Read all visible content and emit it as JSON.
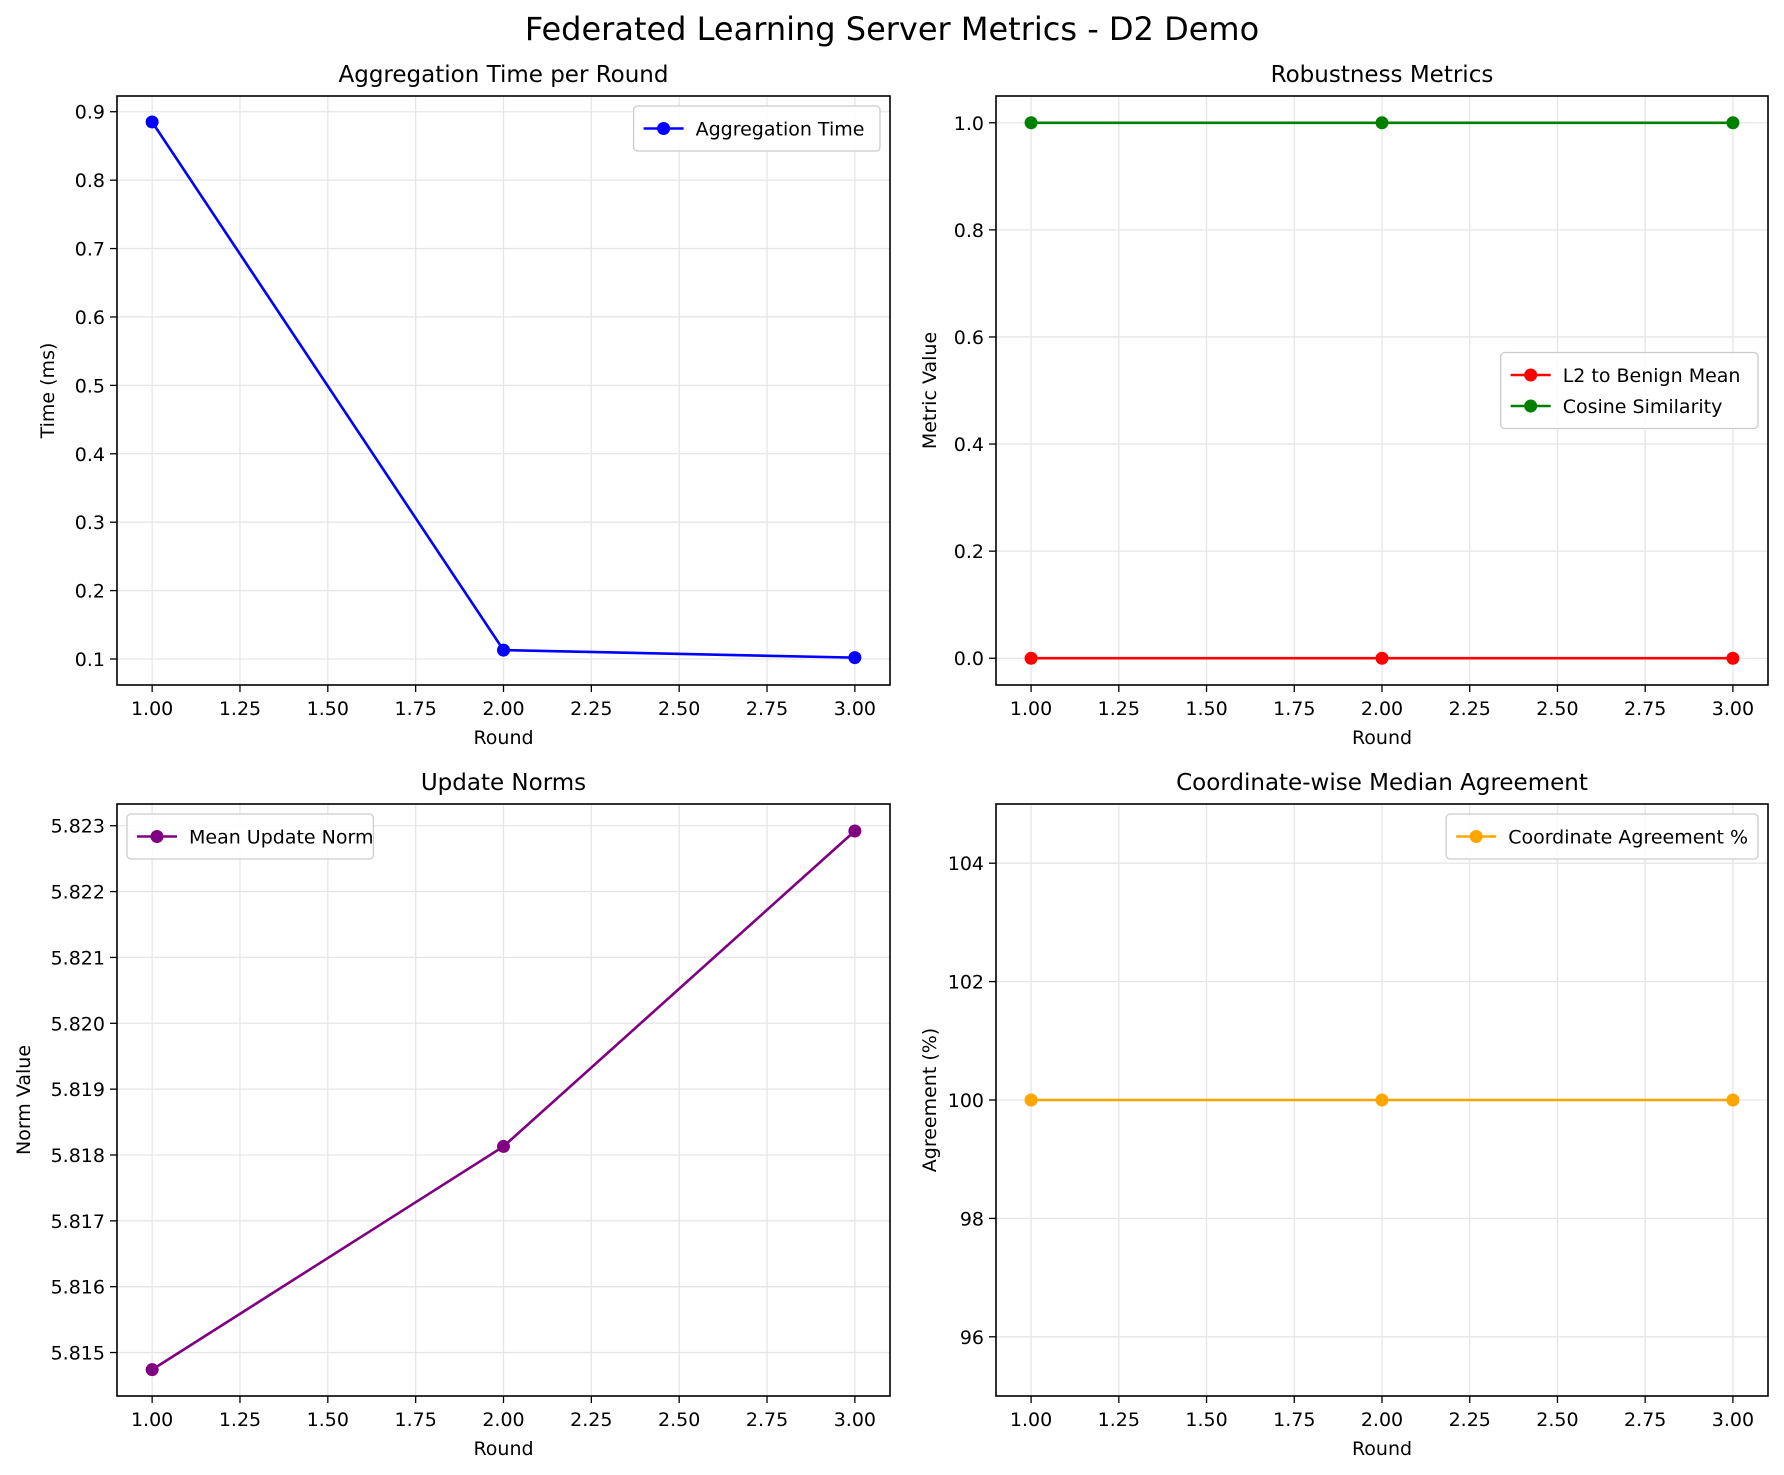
{
  "figure": {
    "title": "Federated Learning Server Metrics - D2 Demo"
  },
  "chart_data": [
    {
      "type": "line",
      "title": "Aggregation Time per Round",
      "xlabel": "Round",
      "ylabel": "Time (ms)",
      "xlim": [
        0.9,
        3.1
      ],
      "ylim": [
        0.062,
        0.923
      ],
      "xticks": [
        1.0,
        1.25,
        1.5,
        1.75,
        2.0,
        2.25,
        2.5,
        2.75,
        3.0
      ],
      "xtick_labels": [
        "1.00",
        "1.25",
        "1.50",
        "1.75",
        "2.00",
        "2.25",
        "2.50",
        "2.75",
        "3.00"
      ],
      "yticks": [
        0.1,
        0.2,
        0.3,
        0.4,
        0.5,
        0.6,
        0.7,
        0.8,
        0.9
      ],
      "ytick_labels": [
        "0.1",
        "0.2",
        "0.3",
        "0.4",
        "0.5",
        "0.6",
        "0.7",
        "0.8",
        "0.9"
      ],
      "grid": true,
      "legend_position": "upper-right",
      "x": [
        1,
        2,
        3
      ],
      "series": [
        {
          "name": "Aggregation Time",
          "color": "#0000ff",
          "values": [
            0.885,
            0.113,
            0.102
          ]
        }
      ]
    },
    {
      "type": "line",
      "title": "Robustness Metrics",
      "xlabel": "Round",
      "ylabel": "Metric Value",
      "xlim": [
        0.9,
        3.1
      ],
      "ylim": [
        -0.05,
        1.05
      ],
      "xticks": [
        1.0,
        1.25,
        1.5,
        1.75,
        2.0,
        2.25,
        2.5,
        2.75,
        3.0
      ],
      "xtick_labels": [
        "1.00",
        "1.25",
        "1.50",
        "1.75",
        "2.00",
        "2.25",
        "2.50",
        "2.75",
        "3.00"
      ],
      "yticks": [
        0.0,
        0.2,
        0.4,
        0.6,
        0.8,
        1.0
      ],
      "ytick_labels": [
        "0.0",
        "0.2",
        "0.4",
        "0.6",
        "0.8",
        "1.0"
      ],
      "grid": true,
      "legend_position": "center-right",
      "x": [
        1,
        2,
        3
      ],
      "series": [
        {
          "name": "L2 to Benign Mean",
          "color": "#ff0000",
          "values": [
            0.0,
            0.0,
            0.0
          ]
        },
        {
          "name": "Cosine Similarity",
          "color": "#008000",
          "values": [
            1.0,
            1.0,
            1.0
          ]
        }
      ]
    },
    {
      "type": "line",
      "title": "Update Norms",
      "xlabel": "Round",
      "ylabel": "Norm Value",
      "xlim": [
        0.9,
        3.1
      ],
      "ylim": [
        5.81434,
        5.82333
      ],
      "xticks": [
        1.0,
        1.25,
        1.5,
        1.75,
        2.0,
        2.25,
        2.5,
        2.75,
        3.0
      ],
      "xtick_labels": [
        "1.00",
        "1.25",
        "1.50",
        "1.75",
        "2.00",
        "2.25",
        "2.50",
        "2.75",
        "3.00"
      ],
      "yticks": [
        5.815,
        5.816,
        5.817,
        5.818,
        5.819,
        5.82,
        5.821,
        5.822,
        5.823
      ],
      "ytick_labels": [
        "5.815",
        "5.816",
        "5.817",
        "5.818",
        "5.819",
        "5.820",
        "5.821",
        "5.822",
        "5.823"
      ],
      "grid": true,
      "legend_position": "upper-left",
      "x": [
        1,
        2,
        3
      ],
      "series": [
        {
          "name": "Mean Update Norm",
          "color": "#800080",
          "values": [
            5.81474,
            5.81813,
            5.82292
          ]
        }
      ]
    },
    {
      "type": "line",
      "title": "Coordinate-wise Median Agreement",
      "xlabel": "Round",
      "ylabel": "Agreement (%)",
      "xlim": [
        0.9,
        3.1
      ],
      "ylim": [
        95,
        105
      ],
      "xticks": [
        1.0,
        1.25,
        1.5,
        1.75,
        2.0,
        2.25,
        2.5,
        2.75,
        3.0
      ],
      "xtick_labels": [
        "1.00",
        "1.25",
        "1.50",
        "1.75",
        "2.00",
        "2.25",
        "2.50",
        "2.75",
        "3.00"
      ],
      "yticks": [
        96,
        98,
        100,
        102,
        104
      ],
      "ytick_labels": [
        "96",
        "98",
        "100",
        "102",
        "104"
      ],
      "grid": true,
      "legend_position": "upper-right",
      "x": [
        1,
        2,
        3
      ],
      "series": [
        {
          "name": "Coordinate Agreement %",
          "color": "#ffa500",
          "values": [
            100,
            100,
            100
          ]
        }
      ]
    }
  ]
}
